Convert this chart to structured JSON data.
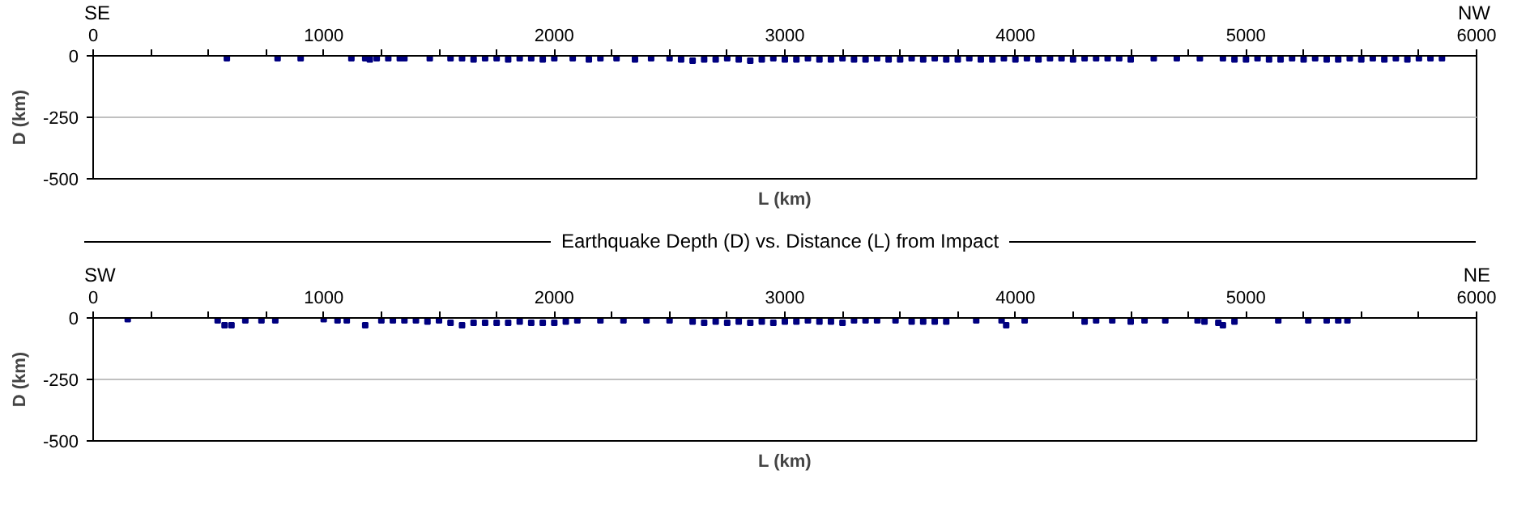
{
  "chart_data": [
    {
      "type": "scatter",
      "xlabel": "L (km)",
      "ylabel": "D (km)",
      "annotations": [
        "SE",
        "NW"
      ],
      "marker": "square",
      "grid": "y",
      "xlim": [
        0,
        6000
      ],
      "ylim": [
        -500,
        0
      ],
      "xticks": [
        0,
        {
          "value": 250,
          "label": null
        },
        {
          "value": 500,
          "label": null
        },
        {
          "value": 750,
          "label": null
        },
        1000,
        {
          "value": 1250,
          "label": null
        },
        {
          "value": 1500,
          "label": null
        },
        {
          "value": 1750,
          "label": null
        },
        2000,
        {
          "value": 2250,
          "label": null
        },
        {
          "value": 2500,
          "label": null
        },
        {
          "value": 2750,
          "label": null
        },
        3000,
        {
          "value": 3250,
          "label": null
        },
        {
          "value": 3500,
          "label": null
        },
        {
          "value": 3750,
          "label": null
        },
        4000,
        {
          "value": 4250,
          "label": null
        },
        {
          "value": 4500,
          "label": null
        },
        {
          "value": 4750,
          "label": null
        },
        5000,
        {
          "value": 5250,
          "label": null
        },
        {
          "value": 5500,
          "label": null
        },
        {
          "value": 5750,
          "label": null
        },
        6000
      ],
      "yticks": [
        -500,
        -250,
        0
      ],
      "series": [
        {
          "color": "#000080",
          "x": [
            580,
            800,
            900,
            1120,
            1180,
            1200,
            1230,
            1280,
            1330,
            1350,
            1460,
            1550,
            1600,
            1650,
            1700,
            1750,
            1800,
            1850,
            1900,
            1950,
            2000,
            2080,
            2150,
            2200,
            2270,
            2350,
            2420,
            2500,
            2550,
            2600,
            2650,
            2700,
            2750,
            2800,
            2850,
            2900,
            2950,
            3000,
            3050,
            3100,
            3150,
            3200,
            3250,
            3300,
            3350,
            3400,
            3450,
            3500,
            3550,
            3600,
            3650,
            3700,
            3750,
            3800,
            3850,
            3900,
            3950,
            4000,
            4050,
            4100,
            4150,
            4200,
            4250,
            4300,
            4350,
            4400,
            4450,
            4500,
            4600,
            4700,
            4800,
            4900,
            4950,
            5000,
            5050,
            5100,
            5150,
            5200,
            5250,
            5300,
            5350,
            5400,
            5450,
            5500,
            5550,
            5600,
            5650,
            5700,
            5750,
            5800,
            5850
          ],
          "values": [
            -10,
            -10,
            -10,
            -10,
            -10,
            -15,
            -10,
            -10,
            -10,
            -10,
            -10,
            -10,
            -10,
            -15,
            -10,
            -10,
            -15,
            -10,
            -10,
            -15,
            -10,
            -10,
            -15,
            -10,
            -10,
            -15,
            -10,
            -10,
            -15,
            -20,
            -15,
            -15,
            -10,
            -15,
            -20,
            -15,
            -10,
            -15,
            -15,
            -10,
            -15,
            -15,
            -10,
            -15,
            -15,
            -10,
            -15,
            -15,
            -10,
            -15,
            -10,
            -15,
            -15,
            -10,
            -15,
            -15,
            -10,
            -15,
            -10,
            -15,
            -10,
            -10,
            -15,
            -10,
            -10,
            -10,
            -10,
            -15,
            -10,
            -10,
            -10,
            -10,
            -15,
            -15,
            -10,
            -15,
            -15,
            -10,
            -15,
            -10,
            -15,
            -15,
            -10,
            -15,
            -10,
            -15,
            -10,
            -15,
            -10,
            -10,
            -10
          ]
        }
      ]
    },
    {
      "type": "scatter",
      "title": "Earthquake Depth (D) vs. Distance (L) from Impact",
      "xlabel": "L (km)",
      "ylabel": "D (km)",
      "annotations": [
        "SW",
        "NE"
      ],
      "marker": "square",
      "grid": "y",
      "xlim": [
        0,
        6000
      ],
      "ylim": [
        -500,
        0
      ],
      "xticks": [
        0,
        {
          "value": 250,
          "label": null
        },
        {
          "value": 500,
          "label": null
        },
        {
          "value": 750,
          "label": null
        },
        1000,
        {
          "value": 1250,
          "label": null
        },
        {
          "value": 1500,
          "label": null
        },
        {
          "value": 1750,
          "label": null
        },
        2000,
        {
          "value": 2250,
          "label": null
        },
        {
          "value": 2500,
          "label": null
        },
        {
          "value": 2750,
          "label": null
        },
        3000,
        {
          "value": 3250,
          "label": null
        },
        {
          "value": 3500,
          "label": null
        },
        {
          "value": 3750,
          "label": null
        },
        4000,
        {
          "value": 4250,
          "label": null
        },
        {
          "value": 4500,
          "label": null
        },
        {
          "value": 4750,
          "label": null
        },
        5000,
        {
          "value": 5250,
          "label": null
        },
        {
          "value": 5500,
          "label": null
        },
        {
          "value": 5750,
          "label": null
        },
        6000
      ],
      "yticks": [
        -500,
        -250,
        0
      ],
      "series": [
        {
          "color": "#000080",
          "x": [
            150,
            540,
            570,
            600,
            660,
            730,
            790,
            1000,
            1060,
            1100,
            1180,
            1250,
            1300,
            1350,
            1400,
            1450,
            1500,
            1550,
            1600,
            1650,
            1700,
            1750,
            1800,
            1850,
            1900,
            1950,
            2000,
            2050,
            2100,
            2200,
            2300,
            2400,
            2500,
            2600,
            2650,
            2700,
            2750,
            2800,
            2850,
            2900,
            2950,
            3000,
            3050,
            3100,
            3150,
            3200,
            3250,
            3300,
            3350,
            3400,
            3480,
            3550,
            3600,
            3650,
            3700,
            3830,
            3940,
            3960,
            4040,
            4300,
            4350,
            4420,
            4500,
            4560,
            4650,
            4790,
            4820,
            4880,
            4900,
            4950,
            5140,
            5270,
            5350,
            5400,
            5440
          ],
          "values": [
            -5,
            -10,
            -30,
            -30,
            -10,
            -10,
            -10,
            -5,
            -10,
            -10,
            -30,
            -10,
            -10,
            -10,
            -10,
            -15,
            -10,
            -20,
            -30,
            -20,
            -20,
            -20,
            -20,
            -15,
            -20,
            -20,
            -20,
            -15,
            -10,
            -10,
            -10,
            -10,
            -10,
            -15,
            -20,
            -15,
            -20,
            -15,
            -20,
            -15,
            -20,
            -15,
            -15,
            -10,
            -15,
            -15,
            -20,
            -10,
            -10,
            -10,
            -10,
            -15,
            -15,
            -15,
            -15,
            -10,
            -10,
            -30,
            -10,
            -15,
            -10,
            -10,
            -15,
            -10,
            -10,
            -10,
            -15,
            -20,
            -30,
            -15,
            -10,
            -10,
            -10,
            -10,
            -10
          ]
        }
      ]
    }
  ]
}
